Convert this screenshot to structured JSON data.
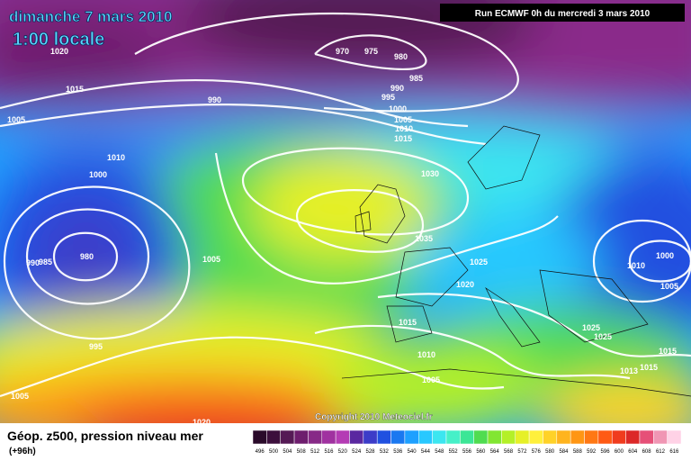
{
  "header": {
    "date": "dimanche 7 mars 2010",
    "time": "1:00 locale",
    "run": "Run ECMWF 0h du mercredi 3 mars 2010"
  },
  "isobar_labels": [
    "1020",
    "1015",
    "1005",
    "990",
    "970",
    "975",
    "980",
    "985",
    "990",
    "995",
    "1000",
    "1005",
    "1010",
    "1015",
    "1010",
    "1000",
    "1030",
    "1035",
    "1025",
    "1020",
    "980",
    "990",
    "985",
    "1005",
    "995",
    "1005",
    "1015",
    "1010",
    "1005",
    "1000",
    "1010",
    "1005",
    "1025",
    "1025",
    "1015",
    "1013",
    "1015",
    "1020"
  ],
  "copyright": "Copyright 2010 Meteociel.fr",
  "footer": {
    "title": "Géop. z500, pression niveau mer",
    "subtitle": "(+96h)"
  },
  "scale": {
    "values": [
      496,
      500,
      504,
      508,
      512,
      516,
      520,
      524,
      528,
      532,
      536,
      540,
      544,
      548,
      552,
      556,
      560,
      564,
      568,
      572,
      576,
      580,
      584,
      588,
      592,
      596,
      600,
      604,
      608,
      612,
      616
    ],
    "colors": [
      "#2a0a2a",
      "#3c0f3c",
      "#551a55",
      "#6e1e6e",
      "#872a87",
      "#a032a0",
      "#b43cb4",
      "#5a28a0",
      "#3c3cc8",
      "#2050e0",
      "#1a78f0",
      "#1ea0ff",
      "#28c8ff",
      "#3ce6f0",
      "#46f0c8",
      "#3ce696",
      "#50dc50",
      "#82e632",
      "#b4f028",
      "#e6f028",
      "#fff03c",
      "#ffd228",
      "#ffb41e",
      "#ff9614",
      "#ff7814",
      "#ff5a14",
      "#f03c1e",
      "#dc2828",
      "#e65078",
      "#f096b4",
      "#ffd2e6"
    ]
  }
}
